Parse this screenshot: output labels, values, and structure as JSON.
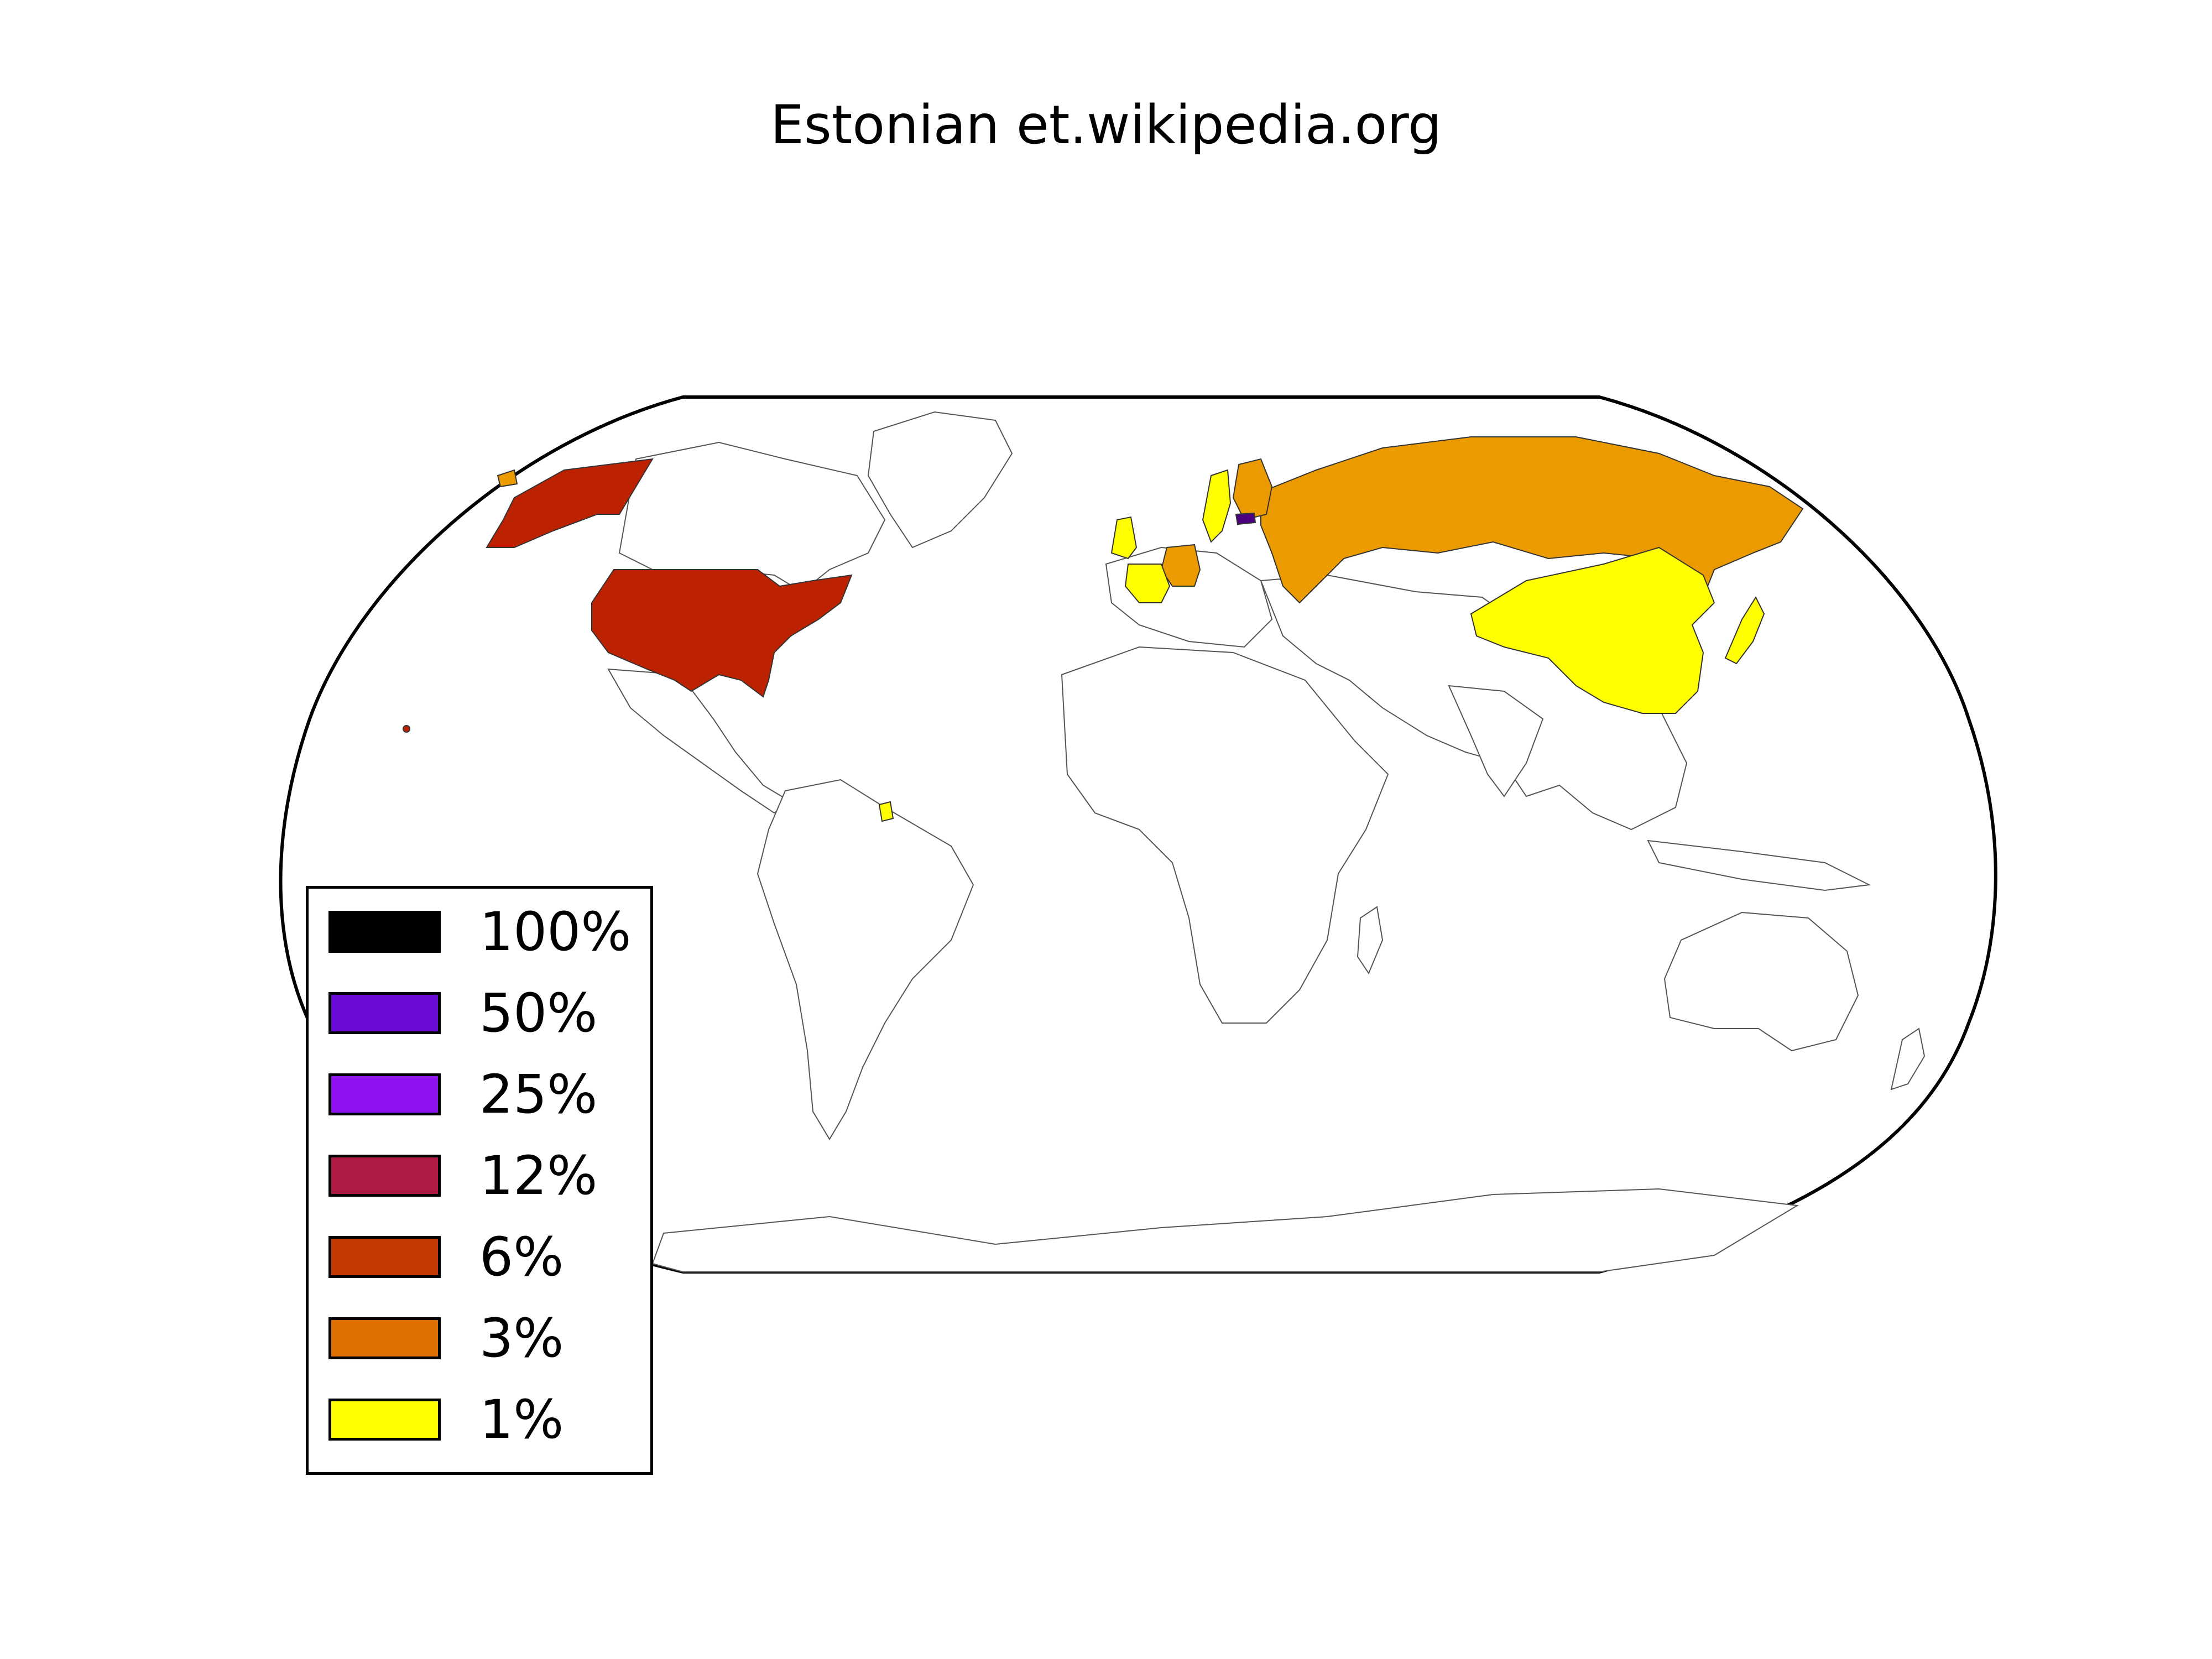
{
  "title": "Estonian et.wikipedia.org",
  "legend": {
    "items": [
      {
        "label": "100%",
        "color": "#000000"
      },
      {
        "label": "50%",
        "color": "#6a0ad6"
      },
      {
        "label": "25%",
        "color": "#8e12f2"
      },
      {
        "label": "12%",
        "color": "#b01b44"
      },
      {
        "label": "6%",
        "color": "#c43a00"
      },
      {
        "label": "3%",
        "color": "#dd7000"
      },
      {
        "label": "1%",
        "color": "#ffff00"
      }
    ]
  },
  "countries": [
    {
      "name": "Estonia",
      "color": "#4b0080"
    },
    {
      "name": "Russia",
      "color": "#eb9b00"
    },
    {
      "name": "Germany",
      "color": "#eb9b00"
    },
    {
      "name": "Finland",
      "color": "#eb9b00"
    },
    {
      "name": "United States",
      "color": "#bd2200"
    },
    {
      "name": "Sweden",
      "color": "#ffff00"
    },
    {
      "name": "United Kingdom",
      "color": "#ffff00"
    },
    {
      "name": "France",
      "color": "#ffff00"
    },
    {
      "name": "China",
      "color": "#ffff00"
    },
    {
      "name": "Japan",
      "color": "#ffff00"
    },
    {
      "name": "French Guiana",
      "color": "#ffff00"
    }
  ]
}
